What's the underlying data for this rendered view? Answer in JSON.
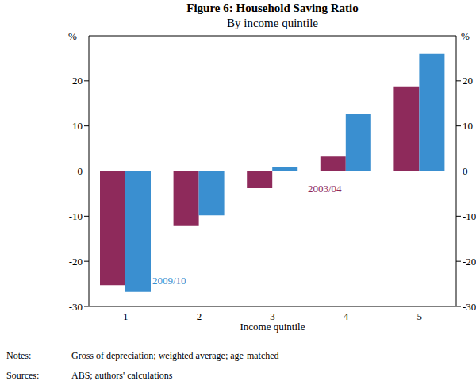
{
  "chart_data": {
    "type": "bar",
    "title": "Figure 6: Household Saving Ratio",
    "subtitle": "By income quintile",
    "x_label": "Income quintile",
    "y_label": "%",
    "categories": [
      "1",
      "2",
      "3",
      "4",
      "5"
    ],
    "series": [
      {
        "name": "2003/04",
        "color": "#8e2a5b",
        "values": [
          -25.3,
          -12.2,
          -3.8,
          3.2,
          18.8
        ]
      },
      {
        "name": "2009/10",
        "color": "#3a8fd0",
        "values": [
          -26.8,
          -9.8,
          0.8,
          12.7,
          26.0
        ]
      }
    ],
    "ylim": [
      -30,
      30
    ],
    "yticks": [
      -30,
      -20,
      -10,
      0,
      10,
      20
    ],
    "grid": false,
    "notes_label": "Notes:",
    "notes": "Gross of depreciation; weighted average; age-matched",
    "sources_label": "Sources:",
    "sources": "ABS; authors' calculations"
  }
}
